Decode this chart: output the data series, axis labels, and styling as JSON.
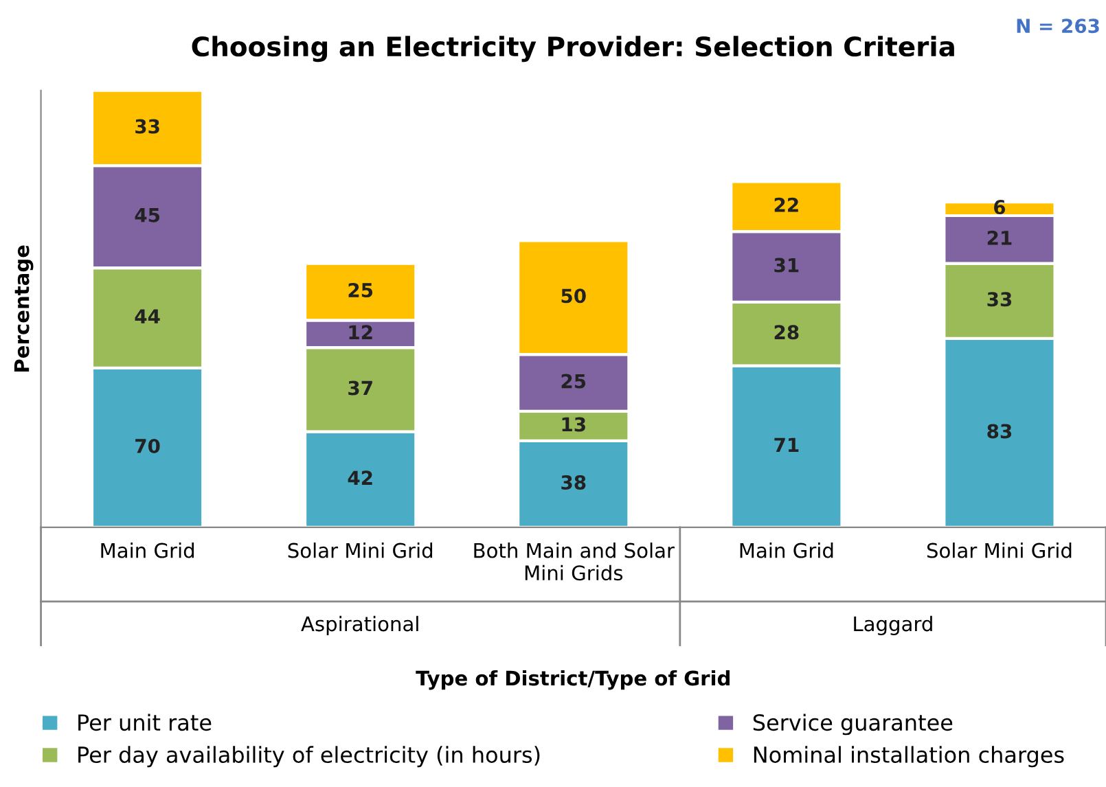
{
  "chart_data": {
    "type": "bar",
    "stacked": true,
    "title": "Choosing an Electricity Provider: Selection Criteria",
    "xlabel": "Type of District/Type of Grid",
    "ylabel": "Percentage",
    "categories": [
      "Main Grid",
      "Solar Mini Grid",
      "Both Main and Solar Mini Grids",
      "Main Grid",
      "Solar Mini Grid"
    ],
    "series": [
      {
        "name": "Per unit rate",
        "color": "#4bacc6",
        "values": [
          70,
          42,
          38,
          71,
          83
        ]
      },
      {
        "name": "Per day availability of electricity (in hours)",
        "color": "#9bbb59",
        "values": [
          44,
          37,
          13,
          28,
          33
        ]
      },
      {
        "name": "Service guarantee",
        "color": "#8064a2",
        "values": [
          45,
          12,
          25,
          31,
          21
        ]
      },
      {
        "name": "Nominal installation charges",
        "color": "#ffc000",
        "values": [
          33,
          25,
          50,
          22,
          6
        ]
      }
    ],
    "data_labels": true,
    "annotations": [
      "Aspirational",
      "Laggard",
      "N = 263"
    ],
    "legend": "bottom",
    "grid": false
  }
}
